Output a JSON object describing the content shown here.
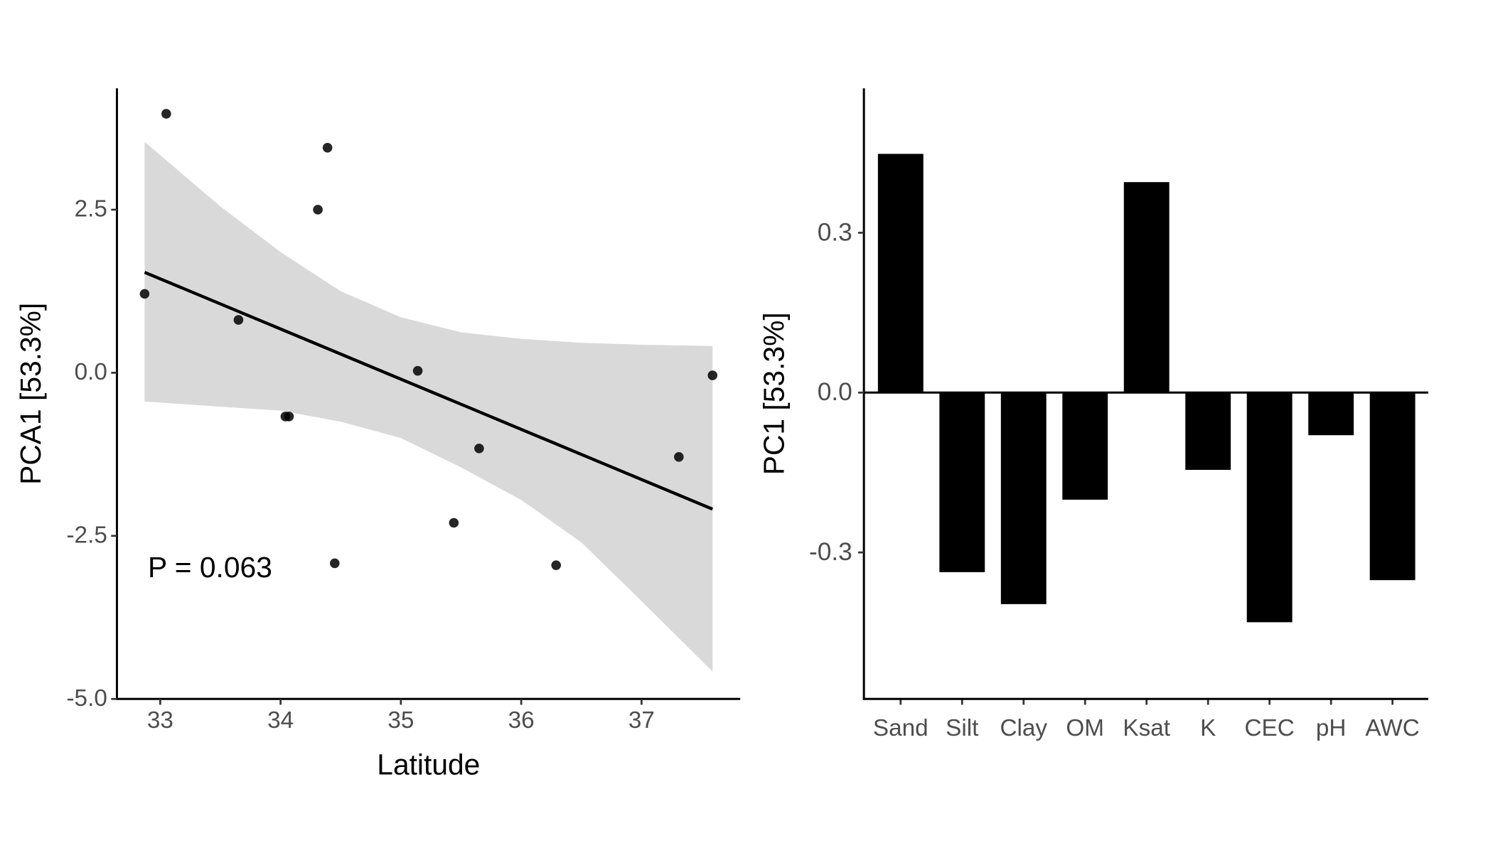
{
  "chart_data": [
    {
      "type": "scatter",
      "xlabel": "Latitude",
      "ylabel": "PCA1 [53.3%]",
      "xlim": [
        32.64,
        37.82
      ],
      "ylim": [
        -5.0,
        4.36
      ],
      "xticks": [
        33,
        34,
        35,
        36,
        37
      ],
      "xtick_labels": [
        "33",
        "34",
        "35",
        "36",
        "37"
      ],
      "yticks": [
        2.5,
        0,
        -2.5,
        -5
      ],
      "ytick_labels": [
        "2.5",
        "0.0",
        "-2.5",
        "-5.0"
      ],
      "grid": false,
      "annotation": "P = 0.063",
      "points": [
        {
          "x": 32.87,
          "y": 1.21
        },
        {
          "x": 33.05,
          "y": 3.97
        },
        {
          "x": 33.65,
          "y": 0.81
        },
        {
          "x": 34.04,
          "y": -0.67
        },
        {
          "x": 34.07,
          "y": -0.67
        },
        {
          "x": 34.31,
          "y": 2.5
        },
        {
          "x": 34.39,
          "y": 3.45
        },
        {
          "x": 34.45,
          "y": -2.92
        },
        {
          "x": 35.14,
          "y": 0.03
        },
        {
          "x": 35.44,
          "y": -2.3
        },
        {
          "x": 35.65,
          "y": -1.16
        },
        {
          "x": 36.29,
          "y": -2.95
        },
        {
          "x": 37.31,
          "y": -1.29
        },
        {
          "x": 37.59,
          "y": -0.04
        }
      ],
      "fit_line": {
        "x": [
          32.87,
          37.59
        ],
        "y": [
          1.54,
          -2.09
        ]
      },
      "confidence_band": {
        "x": [
          32.87,
          33.5,
          34.0,
          34.5,
          35.0,
          35.5,
          36.0,
          36.5,
          37.0,
          37.59
        ],
        "upper": [
          3.54,
          2.55,
          1.85,
          1.25,
          0.85,
          0.62,
          0.52,
          0.46,
          0.43,
          0.41
        ],
        "lower": [
          -0.44,
          -0.52,
          -0.58,
          -0.75,
          -1.0,
          -1.45,
          -1.95,
          -2.6,
          -3.5,
          -4.58
        ]
      },
      "colors": {
        "points": "#000000",
        "line": "#000000",
        "band": "#d9d9d9"
      }
    },
    {
      "type": "bar",
      "xlabel": "",
      "ylabel": "PC1 [53.3%]",
      "categories": [
        "Sand",
        "Silt",
        "Clay",
        "OM",
        "Ksat",
        "K",
        "CEC",
        "pH",
        "AWC"
      ],
      "values": [
        0.448,
        -0.337,
        -0.397,
        -0.201,
        0.395,
        -0.145,
        -0.431,
        -0.08,
        -0.352
      ],
      "ylim": [
        -0.575,
        0.571
      ],
      "yticks": [
        0.3,
        0.0,
        -0.3
      ],
      "ytick_labels": [
        "0.3",
        "0.0",
        "-0.3"
      ],
      "grid": false,
      "colors": {
        "bars": "#000000"
      }
    }
  ]
}
